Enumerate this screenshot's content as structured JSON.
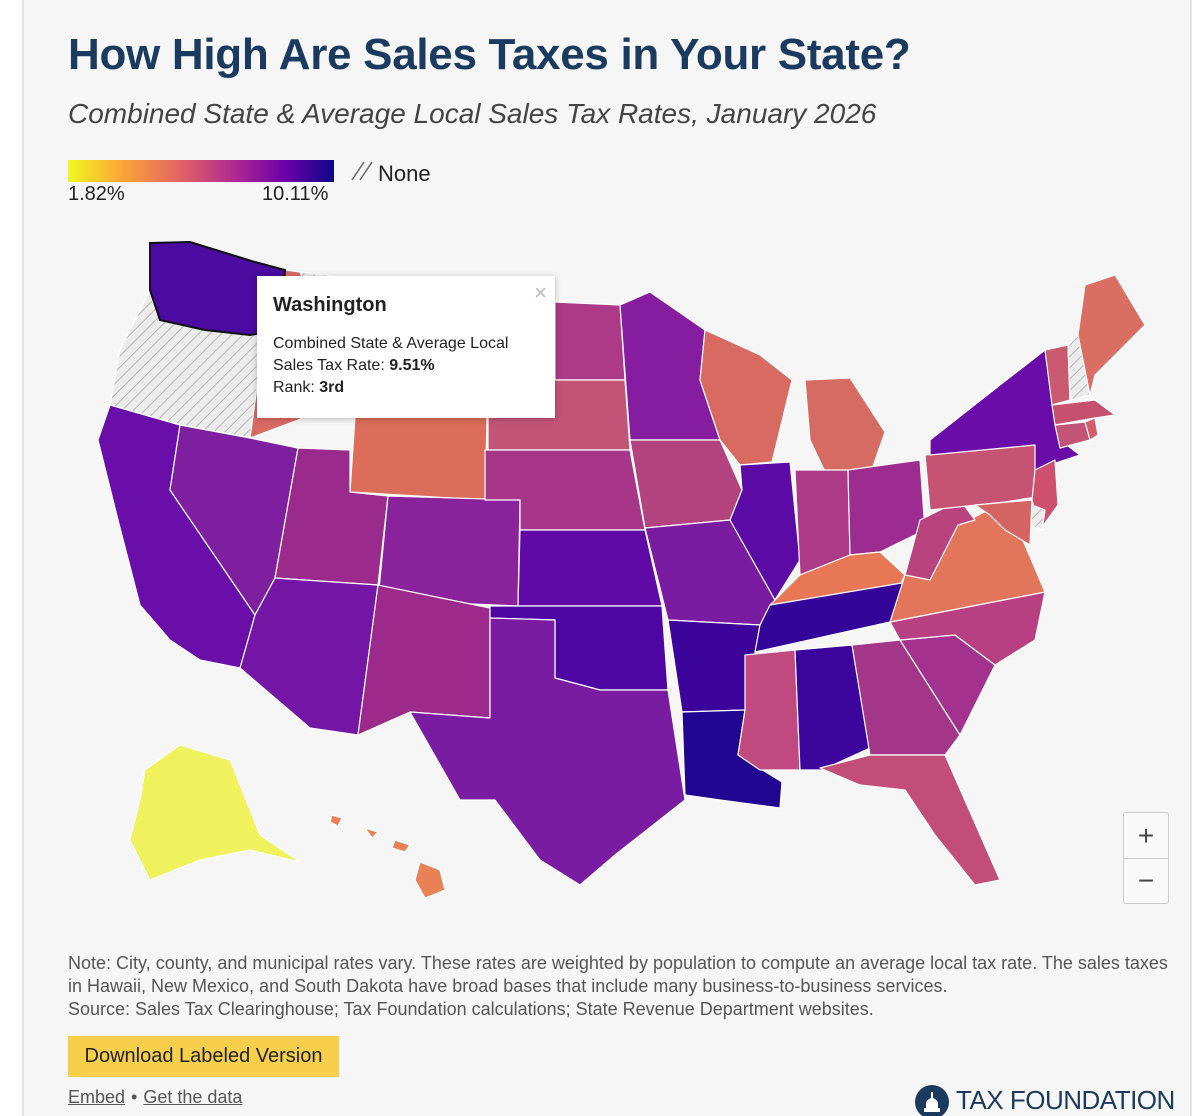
{
  "header": {
    "title": "How High Are Sales Taxes in Your State?",
    "subtitle": "Combined State & Average Local Sales Tax Rates, January 2026"
  },
  "legend": {
    "min_label": "1.82%",
    "max_label": "10.11%",
    "none_label": "None",
    "colors": [
      "#f0f921",
      "#fca636",
      "#e16462",
      "#b12a90",
      "#6a00a8",
      "#0d0887"
    ],
    "none_color": "#d6d6d6"
  },
  "tooltip": {
    "state": "Washington",
    "line1": "Combined State & Average Local",
    "rate_label": "Sales Tax Rate: ",
    "rate_value": "9.51%",
    "rank_label": "Rank: ",
    "rank_value": "3rd",
    "close_icon": "×"
  },
  "zoom": {
    "in_label": "+",
    "out_label": "−"
  },
  "note": {
    "text": "Note: City, county, and municipal rates vary. These rates are weighted by population to compute an average local tax rate. The sales taxes in Hawaii, New Mexico, and South Dakota have broad bases that include many business-to-business services.",
    "source": "Source: Sales Tax Clearinghouse; Tax Foundation calculations; State Revenue Department websites."
  },
  "download_label": "Download Labeled Version",
  "links": {
    "embed": "Embed",
    "separator": "•",
    "get_data": "Get the data"
  },
  "brand": {
    "name": "TAX FOUNDATION",
    "color": "#1b3a5f"
  },
  "state_colors": {
    "WA": "#4b0aa0",
    "OR": "none",
    "CA": "#6a0eaa",
    "NV": "#7e1fa0",
    "ID": "#d96a63",
    "MT": "none",
    "WY": "#dc6d5a",
    "UT": "#9a2a8b",
    "AZ": "#7316a6",
    "CO": "#8a229c",
    "NM": "#9c2a8a",
    "ND": "#ad3a86",
    "SD": "#c25478",
    "NE": "#a83688",
    "KS": "#5f0aa6",
    "OK": "#4e06a2",
    "TX": "#7a1ca2",
    "MN": "#861c9f",
    "IA": "#b3437f",
    "MO": "#7a1ca2",
    "AR": "#3d049c",
    "LA": "#210692",
    "WI": "#d96a61",
    "IL": "#5c0aa6",
    "MI": "#d66b63",
    "IN": "#ad3a86",
    "OH": "#9d2c90",
    "KY": "#e87855",
    "TN": "#330599",
    "MS": "#c04a7f",
    "AL": "#3c069c",
    "GA": "#a43689",
    "FL": "#c24e78",
    "SC": "#a3318e",
    "NC": "#b84082",
    "VA": "#e2755a",
    "WV": "#b8437f",
    "PA": "#c75374",
    "NY": "#6a0ca8",
    "VT": "#ca5a70",
    "NH": "none",
    "ME": "#db6e63",
    "MA": "#c6506f",
    "RI": "#d55d6a",
    "CT": "#c25477",
    "NJ": "#cf4f6e",
    "DE": "none",
    "MD": "#d66363",
    "AK": "#eff25c",
    "HI": "#e98156"
  }
}
